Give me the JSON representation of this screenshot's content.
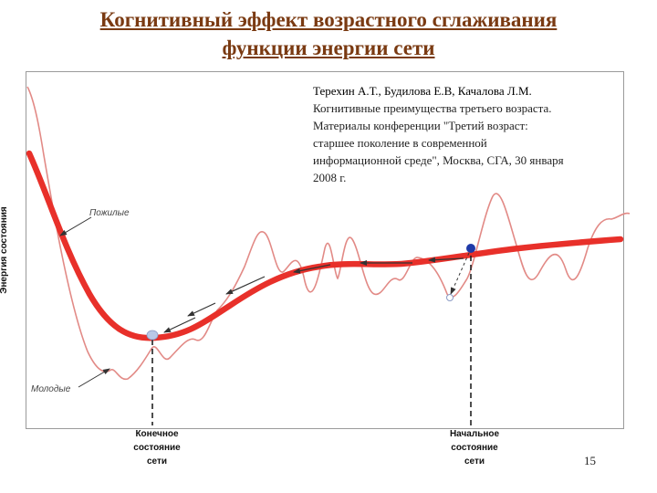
{
  "title": {
    "line1": "Когнитивный эффект возрастного сглаживания",
    "line2": "функции энергии сети"
  },
  "diagram": {
    "y_axis_label": "Энергия состояния",
    "series": {
      "elderly": "Пожилые",
      "young": "Молодые"
    },
    "final_state": [
      "Конечное",
      "состояние",
      "сети"
    ],
    "initial_state": [
      "Начальное",
      "состояние",
      "сети"
    ],
    "colors": {
      "smooth_curve": "#e8302a",
      "rough_curve": "#e28a86",
      "start_marker": "#1f3aa8",
      "end_marker": "#b9c8e6",
      "arrows": "#333333"
    }
  },
  "citation": [
    "Терехин А.Т., Будилова Е.В, Качалова Л.М.",
    "Когнитивные преимущества третьего возраста.",
    "Материалы конференции \"Третий возраст:",
    "старшее поколение в современной",
    "информационной среде\", Москва, СГА, 30 января",
    "2008 г."
  ],
  "page_number": "15"
}
